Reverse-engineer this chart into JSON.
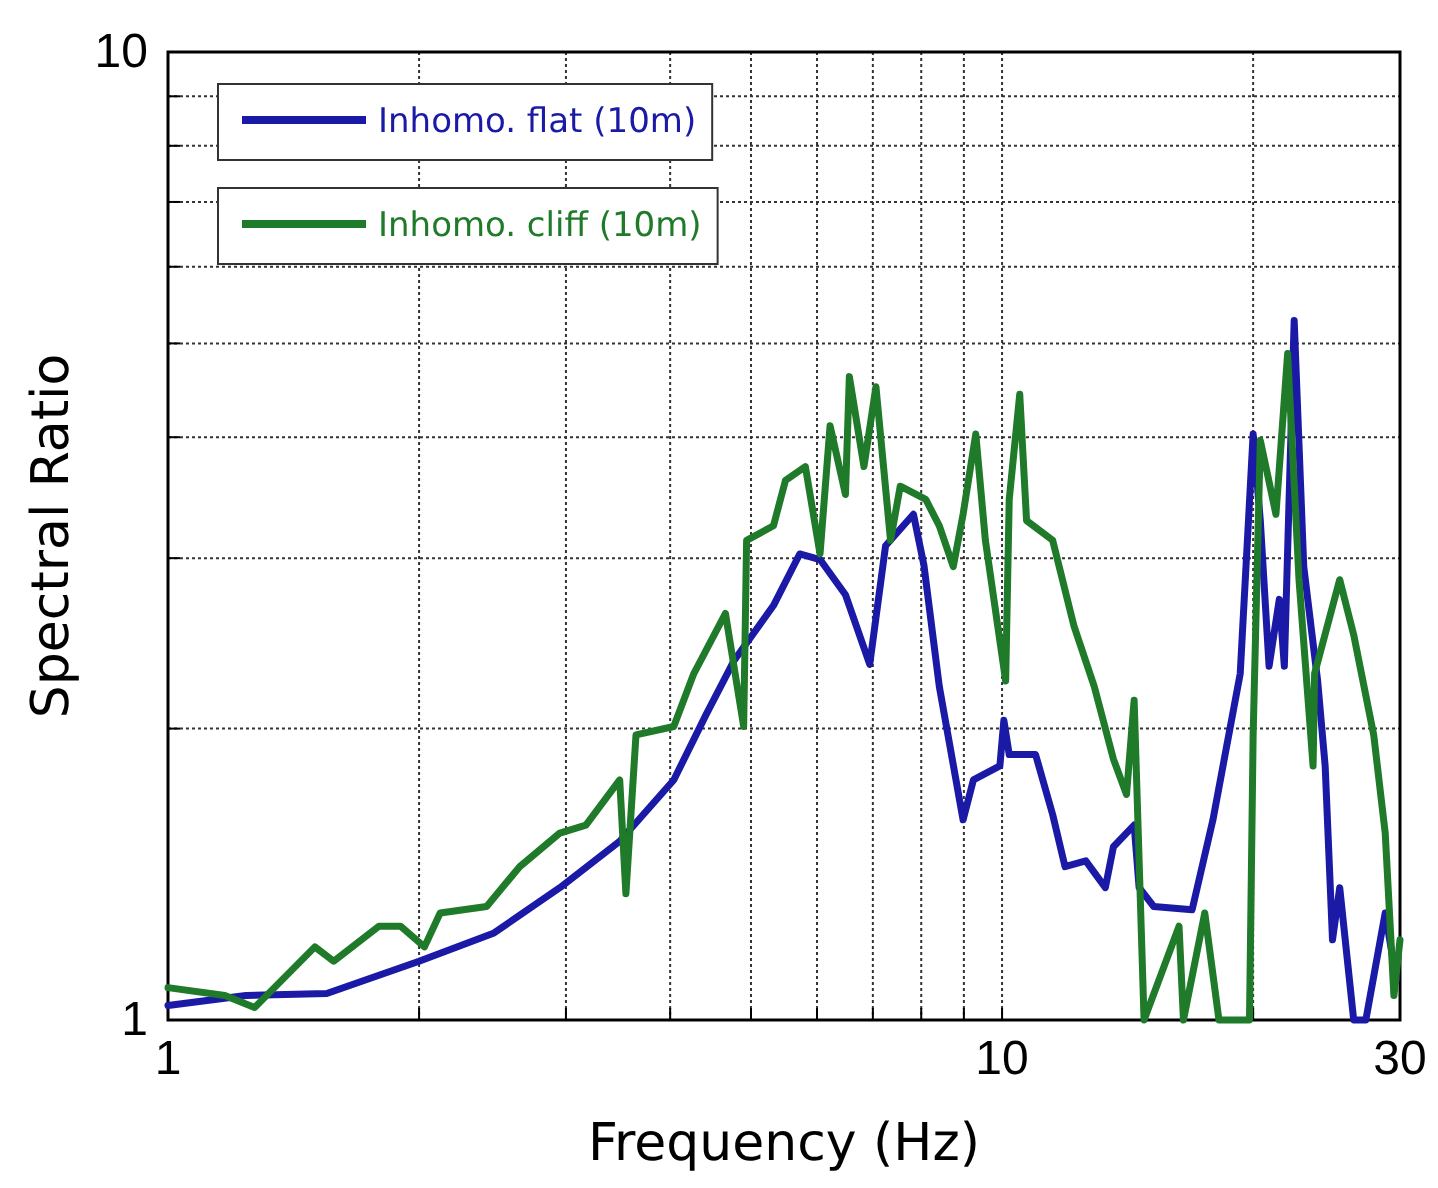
{
  "chart_data": {
    "type": "line",
    "xlabel": "Frequency (Hz)",
    "ylabel": "Spectral Ratio",
    "log": "xy",
    "grid": true,
    "legend": "top left",
    "line_style": "solid",
    "marker": "none",
    "xlim": [
      1,
      30
    ],
    "ylim": [
      1,
      10
    ],
    "xticks": [
      1,
      {
        "value": 2,
        "label": null
      },
      {
        "value": 3,
        "label": null
      },
      {
        "value": 4,
        "label": null
      },
      {
        "value": 5,
        "label": null
      },
      {
        "value": 6,
        "label": null
      },
      {
        "value": 7,
        "label": null
      },
      {
        "value": 8,
        "label": null
      },
      {
        "value": 9,
        "label": null
      },
      10,
      {
        "value": 20,
        "label": null
      },
      30
    ],
    "yticks": [
      1,
      {
        "value": 2,
        "label": null
      },
      {
        "value": 3,
        "label": null
      },
      {
        "value": 4,
        "label": null
      },
      {
        "value": 5,
        "label": null
      },
      {
        "value": 6,
        "label": null
      },
      {
        "value": 7,
        "label": null
      },
      {
        "value": 8,
        "label": null
      },
      {
        "value": 9,
        "label": null
      },
      10
    ],
    "series": [
      {
        "name": "Inhomo. flat (10m)",
        "color": "#1a1aa6",
        "x": [
          1.0,
          1.24,
          1.55,
          2.0,
          2.46,
          2.95,
          3.48,
          4.04,
          4.42,
          4.77,
          5.32,
          5.72,
          6.05,
          6.49,
          6.94,
          7.25,
          7.83,
          8.06,
          8.41,
          8.98,
          9.24,
          9.94,
          10.05,
          10.2,
          10.97,
          11.5,
          11.9,
          12.6,
          13.3,
          13.6,
          14.4,
          14.6,
          15.2,
          16.9,
          17.9,
          19.3,
          20.0,
          20.4,
          20.9,
          21.5,
          21.8,
          22.4,
          23.0,
          23.9,
          24.4,
          24.9,
          25.4,
          26.4,
          27.3,
          28.8,
          29.7
        ],
        "values": [
          1.035,
          1.06,
          1.065,
          1.15,
          1.23,
          1.37,
          1.53,
          1.77,
          2.07,
          2.35,
          2.68,
          3.03,
          2.99,
          2.75,
          2.33,
          3.09,
          3.33,
          2.95,
          2.21,
          1.61,
          1.77,
          1.83,
          2.04,
          1.88,
          1.88,
          1.63,
          1.44,
          1.46,
          1.37,
          1.51,
          1.59,
          1.37,
          1.31,
          1.3,
          1.61,
          2.28,
          4.03,
          3.28,
          2.32,
          2.72,
          2.32,
          5.28,
          2.94,
          2.24,
          1.83,
          1.21,
          1.37,
          1.0,
          1.0,
          1.29,
          1.1
        ]
      },
      {
        "name": "Inhomo. cliff (10m)",
        "color": "#1f7a2a",
        "x": [
          1.0,
          1.17,
          1.27,
          1.5,
          1.58,
          1.79,
          1.9,
          2.03,
          2.12,
          2.41,
          2.64,
          2.95,
          3.17,
          3.48,
          3.54,
          3.64,
          4.04,
          4.27,
          4.66,
          4.9,
          4.94,
          5.32,
          5.5,
          5.81,
          6.05,
          6.22,
          6.49,
          6.56,
          6.83,
          7.06,
          7.35,
          7.55,
          8.1,
          8.41,
          8.74,
          8.98,
          9.3,
          9.55,
          10.1,
          10.2,
          10.5,
          10.7,
          11.5,
          12.2,
          12.9,
          13.6,
          14.1,
          14.4,
          14.8,
          16.3,
          16.5,
          17.5,
          18.2,
          18.9,
          19.8,
          20.0,
          20.4,
          21.3,
          22.0,
          22.7,
          23.6,
          23.7,
          25.4,
          26.4,
          27.9,
          28.8,
          29.5,
          30
        ],
        "values": [
          1.08,
          1.06,
          1.03,
          1.19,
          1.15,
          1.25,
          1.25,
          1.19,
          1.29,
          1.31,
          1.44,
          1.56,
          1.59,
          1.77,
          1.35,
          1.97,
          2.01,
          2.28,
          2.63,
          2.01,
          3.13,
          3.24,
          3.61,
          3.73,
          3.03,
          4.11,
          3.49,
          4.62,
          3.73,
          4.51,
          3.13,
          3.56,
          3.45,
          3.24,
          2.94,
          3.33,
          4.03,
          3.13,
          2.24,
          3.45,
          4.43,
          3.28,
          3.13,
          2.55,
          2.21,
          1.86,
          1.71,
          2.14,
          1.0,
          1.25,
          1.0,
          1.29,
          1.0,
          1.0,
          1.0,
          1.97,
          3.97,
          3.33,
          4.88,
          2.85,
          1.83,
          2.28,
          2.85,
          2.5,
          1.97,
          1.56,
          1.06,
          1.21
        ]
      }
    ]
  }
}
